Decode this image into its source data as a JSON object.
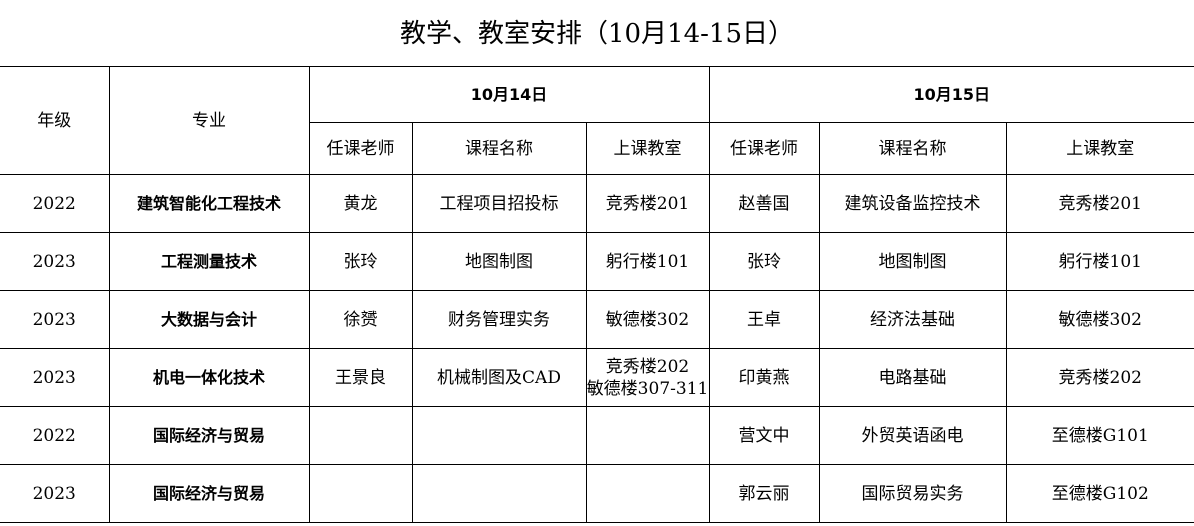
{
  "title": "教学、教室安排（10月14-15日）",
  "headers": {
    "grade": "年级",
    "major": "专业",
    "day1": "10月14日",
    "day2": "10月15日",
    "teacher": "任课老师",
    "course": "课程名称",
    "room": "上课教室"
  },
  "rows": [
    {
      "grade": "2022",
      "major": "建筑智能化工程技术",
      "t1": "黄龙",
      "c1": "工程项目招投标",
      "r1": "竞秀楼201",
      "t2": "赵善国",
      "c2": "建筑设备监控技术",
      "r2": "竞秀楼201"
    },
    {
      "grade": "2023",
      "major": "工程测量技术",
      "t1": "张玲",
      "c1": "地图制图",
      "r1": "躬行楼101",
      "t2": "张玲",
      "c2": "地图制图",
      "r2": "躬行楼101"
    },
    {
      "grade": "2023",
      "major": "大数据与会计",
      "t1": "徐赟",
      "c1": "财务管理实务",
      "r1": "敏德楼302",
      "t2": "王卓",
      "c2": "经济法基础",
      "r2": "敏德楼302"
    },
    {
      "grade": "2023",
      "major": "机电一体化技术",
      "t1": "王景良",
      "c1": "机械制图及CAD",
      "r1": "竞秀楼202",
      "r1b": "敏德楼307-311",
      "t2": "印黄燕",
      "c2": "电路基础",
      "r2": "竞秀楼202"
    },
    {
      "grade": "2022",
      "major": "国际经济与贸易",
      "t1": "",
      "c1": "",
      "r1": "",
      "t2": "营文中",
      "c2": "外贸英语函电",
      "r2": "至德楼G101"
    },
    {
      "grade": "2023",
      "major": "国际经济与贸易",
      "t1": "",
      "c1": "",
      "r1": "",
      "t2": "郭云丽",
      "c2": "国际贸易实务",
      "r2": "至德楼G102"
    }
  ]
}
